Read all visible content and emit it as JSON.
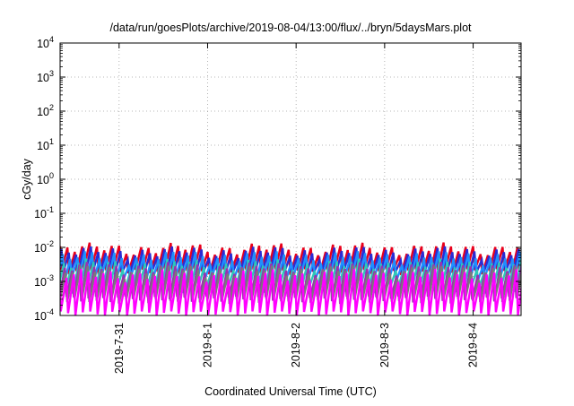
{
  "chart_data": {
    "type": "line",
    "title": "/data/run/goesPlots/archive/2019-08-04/13:00/flux/../bryn/5daysMars.plot",
    "xlabel": "Coordinated Universal Time (UTC)",
    "ylabel": "cGy/day",
    "y_scale": "log",
    "ylim": [
      0.0001,
      10000
    ],
    "y_ticks": [
      {
        "value": 0.0001,
        "base": "10",
        "exp": "-4"
      },
      {
        "value": 0.001,
        "base": "10",
        "exp": "-3"
      },
      {
        "value": 0.01,
        "base": "10",
        "exp": "-2"
      },
      {
        "value": 0.1,
        "base": "10",
        "exp": "-1"
      },
      {
        "value": 1,
        "base": "10",
        "exp": "0"
      },
      {
        "value": 10,
        "base": "10",
        "exp": "1"
      },
      {
        "value": 100,
        "base": "10",
        "exp": "2"
      },
      {
        "value": 1000,
        "base": "10",
        "exp": "3"
      },
      {
        "value": 10000,
        "base": "10",
        "exp": "4"
      }
    ],
    "xlim": [
      "2019-07-30T08:00",
      "2019-08-04T13:00"
    ],
    "x_ticks": [
      "2019-7-31",
      "2019-8-1",
      "2019-8-2",
      "2019-8-3",
      "2019-8-4"
    ],
    "x_tick_values": [
      "2019-07-31T00:00",
      "2019-08-01T00:00",
      "2019-08-02T00:00",
      "2019-08-03T00:00",
      "2019-08-04T00:00"
    ],
    "grid": true,
    "orbit_period_hours": 2.0,
    "series": [
      {
        "color": "#e8001c",
        "peak": 0.0095,
        "trough": 0.0019,
        "phase": 0.0
      },
      {
        "color": "#2b2bd4",
        "peak": 0.0075,
        "trough": 0.0015,
        "phase": 0.18
      },
      {
        "color": "#1e90ff",
        "peak": 0.0055,
        "trough": 0.0011,
        "phase": 0.36
      },
      {
        "color": "#2ec8b8",
        "peak": 0.0032,
        "trough": 0.00055,
        "phase": 0.52
      },
      {
        "color": "#9b30b0",
        "peak": 0.0026,
        "trough": 0.0003,
        "phase": 0.64
      },
      {
        "color": "#7a7a7a",
        "peak": 0.0021,
        "trough": 0.00027,
        "phase": 0.74
      },
      {
        "color": "#ff00ff",
        "peak": 0.0016,
        "trough": 0.00011,
        "phase": 0.86
      }
    ]
  }
}
